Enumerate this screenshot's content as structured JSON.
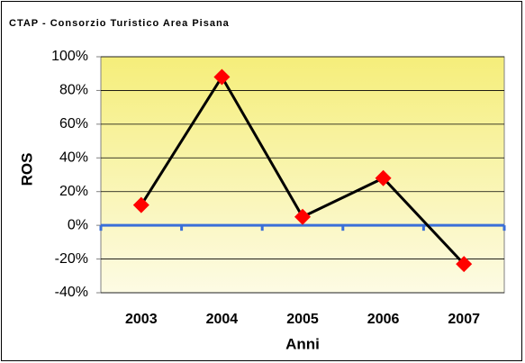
{
  "chart_data": {
    "type": "line",
    "title": "CTAP - Consorzio Turistico Area Pisana",
    "x_label": "Anni",
    "y_label": "ROS",
    "categories": [
      "2003",
      "2004",
      "2005",
      "2006",
      "2007"
    ],
    "values": [
      12,
      88,
      5,
      28,
      -23
    ],
    "color": "#000000",
    "marker_color": "#ff0000",
    "ylim": [
      -40,
      100
    ],
    "yticks": [
      {
        "value": -40,
        "label": "-40%"
      },
      {
        "value": -20,
        "label": "-20%"
      },
      {
        "value": 0,
        "label": "0%"
      },
      {
        "value": 20,
        "label": "20%"
      },
      {
        "value": 40,
        "label": "40%"
      },
      {
        "value": 60,
        "label": "60%"
      },
      {
        "value": 80,
        "label": "80%"
      },
      {
        "value": 100,
        "label": "100%"
      }
    ],
    "grid": true
  }
}
